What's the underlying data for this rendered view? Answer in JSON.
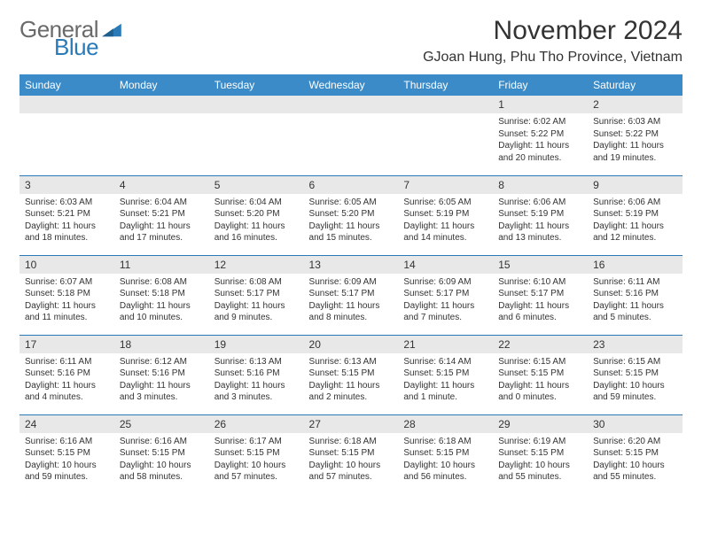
{
  "logo": {
    "text1": "General",
    "text2": "Blue"
  },
  "title": "November 2024",
  "location": "GJoan Hung, Phu Tho Province, Vietnam",
  "colors": {
    "header_bg": "#3b8bc8",
    "header_text": "#ffffff",
    "row_border": "#2a7ab8",
    "daynum_bg": "#e8e8e8",
    "body_text": "#333333",
    "logo_gray": "#6a6a6a",
    "logo_blue": "#2a7ab8"
  },
  "typography": {
    "title_fontsize": 30,
    "location_fontsize": 16,
    "dayheader_fontsize": 12,
    "daynum_fontsize": 12,
    "body_fontsize": 10
  },
  "day_headers": [
    "Sunday",
    "Monday",
    "Tuesday",
    "Wednesday",
    "Thursday",
    "Friday",
    "Saturday"
  ],
  "weeks": [
    [
      {
        "n": "",
        "lines": []
      },
      {
        "n": "",
        "lines": []
      },
      {
        "n": "",
        "lines": []
      },
      {
        "n": "",
        "lines": []
      },
      {
        "n": "",
        "lines": []
      },
      {
        "n": "1",
        "lines": [
          "Sunrise: 6:02 AM",
          "Sunset: 5:22 PM",
          "Daylight: 11 hours and 20 minutes."
        ]
      },
      {
        "n": "2",
        "lines": [
          "Sunrise: 6:03 AM",
          "Sunset: 5:22 PM",
          "Daylight: 11 hours and 19 minutes."
        ]
      }
    ],
    [
      {
        "n": "3",
        "lines": [
          "Sunrise: 6:03 AM",
          "Sunset: 5:21 PM",
          "Daylight: 11 hours and 18 minutes."
        ]
      },
      {
        "n": "4",
        "lines": [
          "Sunrise: 6:04 AM",
          "Sunset: 5:21 PM",
          "Daylight: 11 hours and 17 minutes."
        ]
      },
      {
        "n": "5",
        "lines": [
          "Sunrise: 6:04 AM",
          "Sunset: 5:20 PM",
          "Daylight: 11 hours and 16 minutes."
        ]
      },
      {
        "n": "6",
        "lines": [
          "Sunrise: 6:05 AM",
          "Sunset: 5:20 PM",
          "Daylight: 11 hours and 15 minutes."
        ]
      },
      {
        "n": "7",
        "lines": [
          "Sunrise: 6:05 AM",
          "Sunset: 5:19 PM",
          "Daylight: 11 hours and 14 minutes."
        ]
      },
      {
        "n": "8",
        "lines": [
          "Sunrise: 6:06 AM",
          "Sunset: 5:19 PM",
          "Daylight: 11 hours and 13 minutes."
        ]
      },
      {
        "n": "9",
        "lines": [
          "Sunrise: 6:06 AM",
          "Sunset: 5:19 PM",
          "Daylight: 11 hours and 12 minutes."
        ]
      }
    ],
    [
      {
        "n": "10",
        "lines": [
          "Sunrise: 6:07 AM",
          "Sunset: 5:18 PM",
          "Daylight: 11 hours and 11 minutes."
        ]
      },
      {
        "n": "11",
        "lines": [
          "Sunrise: 6:08 AM",
          "Sunset: 5:18 PM",
          "Daylight: 11 hours and 10 minutes."
        ]
      },
      {
        "n": "12",
        "lines": [
          "Sunrise: 6:08 AM",
          "Sunset: 5:17 PM",
          "Daylight: 11 hours and 9 minutes."
        ]
      },
      {
        "n": "13",
        "lines": [
          "Sunrise: 6:09 AM",
          "Sunset: 5:17 PM",
          "Daylight: 11 hours and 8 minutes."
        ]
      },
      {
        "n": "14",
        "lines": [
          "Sunrise: 6:09 AM",
          "Sunset: 5:17 PM",
          "Daylight: 11 hours and 7 minutes."
        ]
      },
      {
        "n": "15",
        "lines": [
          "Sunrise: 6:10 AM",
          "Sunset: 5:17 PM",
          "Daylight: 11 hours and 6 minutes."
        ]
      },
      {
        "n": "16",
        "lines": [
          "Sunrise: 6:11 AM",
          "Sunset: 5:16 PM",
          "Daylight: 11 hours and 5 minutes."
        ]
      }
    ],
    [
      {
        "n": "17",
        "lines": [
          "Sunrise: 6:11 AM",
          "Sunset: 5:16 PM",
          "Daylight: 11 hours and 4 minutes."
        ]
      },
      {
        "n": "18",
        "lines": [
          "Sunrise: 6:12 AM",
          "Sunset: 5:16 PM",
          "Daylight: 11 hours and 3 minutes."
        ]
      },
      {
        "n": "19",
        "lines": [
          "Sunrise: 6:13 AM",
          "Sunset: 5:16 PM",
          "Daylight: 11 hours and 3 minutes."
        ]
      },
      {
        "n": "20",
        "lines": [
          "Sunrise: 6:13 AM",
          "Sunset: 5:15 PM",
          "Daylight: 11 hours and 2 minutes."
        ]
      },
      {
        "n": "21",
        "lines": [
          "Sunrise: 6:14 AM",
          "Sunset: 5:15 PM",
          "Daylight: 11 hours and 1 minute."
        ]
      },
      {
        "n": "22",
        "lines": [
          "Sunrise: 6:15 AM",
          "Sunset: 5:15 PM",
          "Daylight: 11 hours and 0 minutes."
        ]
      },
      {
        "n": "23",
        "lines": [
          "Sunrise: 6:15 AM",
          "Sunset: 5:15 PM",
          "Daylight: 10 hours and 59 minutes."
        ]
      }
    ],
    [
      {
        "n": "24",
        "lines": [
          "Sunrise: 6:16 AM",
          "Sunset: 5:15 PM",
          "Daylight: 10 hours and 59 minutes."
        ]
      },
      {
        "n": "25",
        "lines": [
          "Sunrise: 6:16 AM",
          "Sunset: 5:15 PM",
          "Daylight: 10 hours and 58 minutes."
        ]
      },
      {
        "n": "26",
        "lines": [
          "Sunrise: 6:17 AM",
          "Sunset: 5:15 PM",
          "Daylight: 10 hours and 57 minutes."
        ]
      },
      {
        "n": "27",
        "lines": [
          "Sunrise: 6:18 AM",
          "Sunset: 5:15 PM",
          "Daylight: 10 hours and 57 minutes."
        ]
      },
      {
        "n": "28",
        "lines": [
          "Sunrise: 6:18 AM",
          "Sunset: 5:15 PM",
          "Daylight: 10 hours and 56 minutes."
        ]
      },
      {
        "n": "29",
        "lines": [
          "Sunrise: 6:19 AM",
          "Sunset: 5:15 PM",
          "Daylight: 10 hours and 55 minutes."
        ]
      },
      {
        "n": "30",
        "lines": [
          "Sunrise: 6:20 AM",
          "Sunset: 5:15 PM",
          "Daylight: 10 hours and 55 minutes."
        ]
      }
    ]
  ]
}
